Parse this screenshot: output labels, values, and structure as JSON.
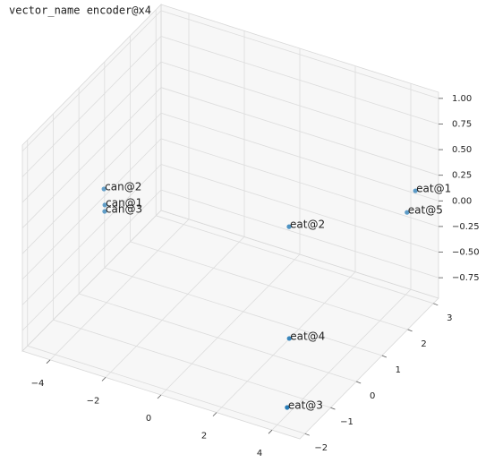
{
  "chart_data": {
    "type": "scatter3d",
    "title": "vector_name encoder@x4",
    "xlim": [
      -5,
      5
    ],
    "ylim": [
      -2.2,
      3.2
    ],
    "zlim": [
      -0.95,
      1.06
    ],
    "xticks": [
      {
        "value": -4,
        "label": "−4"
      },
      {
        "value": -2,
        "label": "−2"
      },
      0,
      2,
      4
    ],
    "yticks": [
      {
        "value": -2,
        "label": "−2"
      },
      {
        "value": -1,
        "label": "−1"
      },
      0,
      1,
      2,
      3
    ],
    "zticks": [
      {
        "value": -0.75,
        "label": "−0.75"
      },
      {
        "value": -0.5,
        "label": "−0.50"
      },
      {
        "value": -0.25,
        "label": "−0.25"
      },
      {
        "value": 0,
        "label": "0.00"
      },
      {
        "value": 0.25,
        "label": "0.25"
      },
      {
        "value": 0.5,
        "label": "0.50"
      },
      {
        "value": 0.75,
        "label": "0.75"
      },
      {
        "value": 1,
        "label": "1.00"
      }
    ],
    "grid": true,
    "depthshade": true,
    "color": "#1f77b4",
    "points": [
      {
        "label": "can@2",
        "x": -3.68,
        "y": -0.45,
        "z": 0.3,
        "label_color": "#33d6d6"
      },
      {
        "label": "can@1",
        "x": -3.5,
        "y": -0.61,
        "z": 0.2,
        "label_color": "#d62020"
      },
      {
        "label": "can@3",
        "x": -3.47,
        "y": -0.65,
        "z": 0.15,
        "label_color": "#6a3fd6"
      },
      {
        "label": "eat@2",
        "x": 2.15,
        "y": 0.46,
        "z": 0.2,
        "label_color": "#33d6d6"
      },
      {
        "label": "eat@1",
        "x": 4.37,
        "y": 2.98,
        "z": 0.1,
        "label_color": "#c81010"
      },
      {
        "label": "eat@5",
        "x": 4.17,
        "y": 2.87,
        "z": -0.1,
        "label_color": "#f09a9a"
      },
      {
        "label": "eat@4",
        "x": 3.24,
        "y": -0.71,
        "z": -0.5,
        "label_color": "#f08c8c"
      },
      {
        "label": "eat@3",
        "x": 4.22,
        "y": -1.85,
        "z": -0.8,
        "label_color": "#1a1ad0"
      }
    ]
  }
}
